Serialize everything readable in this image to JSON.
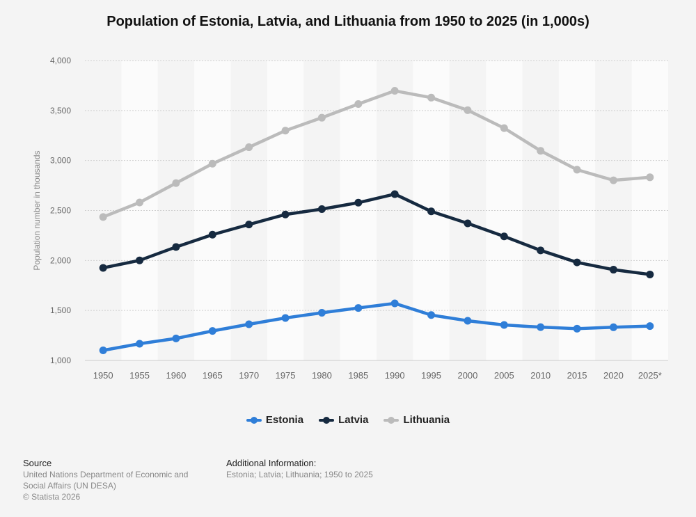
{
  "page": {
    "title": "Population of Estonia, Latvia, and Lithuania from 1950 to 2025 (in 1,000s)"
  },
  "chart_data": {
    "type": "line",
    "title": "Population of Estonia, Latvia, and Lithuania from 1950 to 2025 (in 1,000s)",
    "xlabel": "",
    "ylabel": "Population number in thousands",
    "ylim": [
      1000,
      4000
    ],
    "yticks": [
      1000,
      1500,
      2000,
      2500,
      3000,
      3500,
      4000
    ],
    "ytick_labels": [
      "1,000",
      "1,500",
      "2,000",
      "2,500",
      "3,000",
      "3,500",
      "4,000"
    ],
    "categories": [
      "1950",
      "1955",
      "1960",
      "1965",
      "1970",
      "1975",
      "1980",
      "1985",
      "1990",
      "1995",
      "2000",
      "2005",
      "2010",
      "2015",
      "2020",
      "2025*"
    ],
    "grid": true,
    "legend_position": "bottom",
    "series": [
      {
        "name": "Estonia",
        "color": "#2f7ed8",
        "values": [
          1101,
          1167,
          1220,
          1295,
          1362,
          1425,
          1477,
          1525,
          1571,
          1454,
          1397,
          1355,
          1333,
          1318,
          1332,
          1344
        ]
      },
      {
        "name": "Latvia",
        "color": "#162a40",
        "values": [
          1926,
          2001,
          2135,
          2258,
          2360,
          2460,
          2514,
          2578,
          2664,
          2491,
          2371,
          2241,
          2101,
          1981,
          1908,
          1860
        ]
      },
      {
        "name": "Lithuania",
        "color": "#bbbbbb",
        "values": [
          2435,
          2580,
          2774,
          2968,
          3133,
          3299,
          3428,
          3565,
          3697,
          3629,
          3503,
          3324,
          3097,
          2908,
          2802,
          2832
        ]
      }
    ]
  },
  "footer": {
    "source_heading": "Source",
    "source_text": "United Nations Department of Economic and Social Affairs (UN DESA)",
    "copyright": "© Statista 2026",
    "additional_heading": "Additional Information:",
    "additional_text": "Estonia; Latvia; Lithuania; 1950 to 2025"
  }
}
